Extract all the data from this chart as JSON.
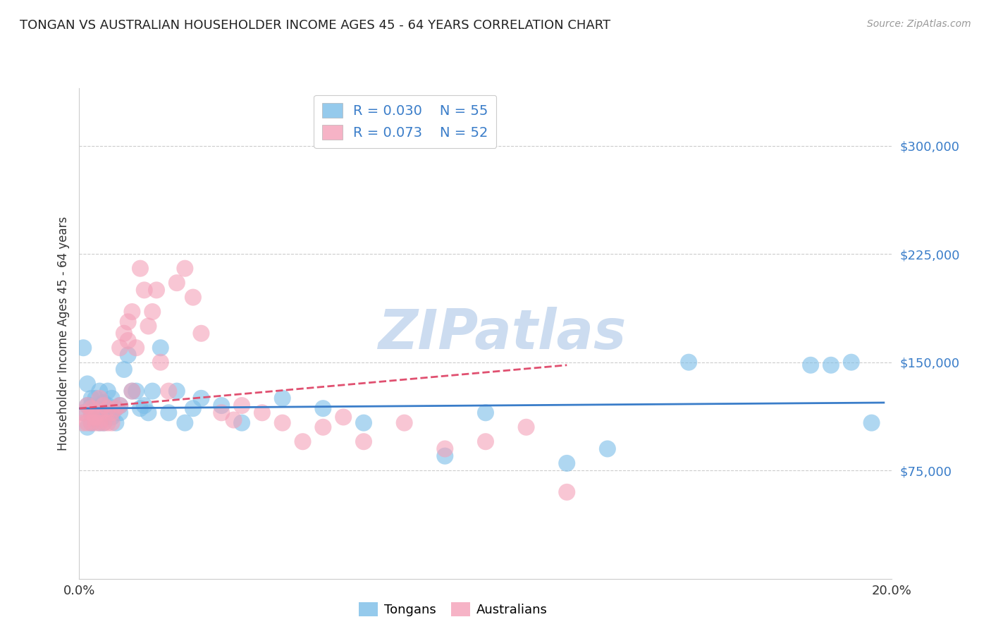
{
  "title": "TONGAN VS AUSTRALIAN HOUSEHOLDER INCOME AGES 45 - 64 YEARS CORRELATION CHART",
  "source": "Source: ZipAtlas.com",
  "ylabel": "Householder Income Ages 45 - 64 years",
  "xlim": [
    0.0,
    0.2
  ],
  "ylim": [
    0,
    340000
  ],
  "xticks": [
    0.0,
    0.05,
    0.1,
    0.15,
    0.2
  ],
  "xticklabels": [
    "0.0%",
    "",
    "",
    "",
    "20.0%"
  ],
  "ytick_positions": [
    75000,
    150000,
    225000,
    300000
  ],
  "ytick_labels": [
    "$75,000",
    "$150,000",
    "$225,000",
    "$300,000"
  ],
  "grid_color": "#cccccc",
  "background_color": "#ffffff",
  "tongan_color": "#7bbde8",
  "australian_color": "#f4a0b8",
  "tongan_line_color": "#3a7dc9",
  "australian_line_color": "#e05070",
  "tongan_R": "0.030",
  "tongan_N": "55",
  "australian_R": "0.073",
  "australian_N": "52",
  "watermark": "ZIPatlas",
  "watermark_color": "#ccdcf0",
  "tongan_scatter_x": [
    0.001,
    0.001,
    0.002,
    0.002,
    0.002,
    0.003,
    0.003,
    0.003,
    0.003,
    0.004,
    0.004,
    0.004,
    0.005,
    0.005,
    0.005,
    0.006,
    0.006,
    0.006,
    0.007,
    0.007,
    0.007,
    0.008,
    0.008,
    0.009,
    0.009,
    0.01,
    0.01,
    0.011,
    0.012,
    0.013,
    0.014,
    0.015,
    0.016,
    0.017,
    0.018,
    0.02,
    0.022,
    0.024,
    0.026,
    0.028,
    0.03,
    0.035,
    0.04,
    0.05,
    0.06,
    0.07,
    0.09,
    0.1,
    0.12,
    0.13,
    0.15,
    0.18,
    0.185,
    0.19,
    0.195
  ],
  "tongan_scatter_y": [
    115000,
    160000,
    120000,
    135000,
    105000,
    125000,
    115000,
    108000,
    120000,
    125000,
    118000,
    112000,
    130000,
    118000,
    108000,
    122000,
    115000,
    108000,
    130000,
    120000,
    115000,
    112000,
    125000,
    118000,
    108000,
    120000,
    115000,
    145000,
    155000,
    130000,
    130000,
    118000,
    120000,
    115000,
    130000,
    160000,
    115000,
    130000,
    108000,
    118000,
    125000,
    120000,
    108000,
    125000,
    118000,
    108000,
    85000,
    115000,
    80000,
    90000,
    150000,
    148000,
    148000,
    150000,
    108000
  ],
  "australian_scatter_x": [
    0.001,
    0.001,
    0.002,
    0.002,
    0.003,
    0.003,
    0.003,
    0.004,
    0.004,
    0.005,
    0.005,
    0.005,
    0.006,
    0.006,
    0.007,
    0.007,
    0.008,
    0.008,
    0.009,
    0.01,
    0.01,
    0.011,
    0.012,
    0.012,
    0.013,
    0.013,
    0.014,
    0.015,
    0.016,
    0.017,
    0.018,
    0.019,
    0.02,
    0.022,
    0.024,
    0.026,
    0.028,
    0.03,
    0.035,
    0.038,
    0.04,
    0.045,
    0.05,
    0.055,
    0.06,
    0.065,
    0.07,
    0.08,
    0.09,
    0.1,
    0.11,
    0.12
  ],
  "australian_scatter_y": [
    115000,
    108000,
    120000,
    108000,
    118000,
    108000,
    115000,
    112000,
    108000,
    125000,
    115000,
    108000,
    120000,
    108000,
    118000,
    108000,
    115000,
    108000,
    118000,
    120000,
    160000,
    170000,
    165000,
    178000,
    130000,
    185000,
    160000,
    215000,
    200000,
    175000,
    185000,
    200000,
    150000,
    130000,
    205000,
    215000,
    195000,
    170000,
    115000,
    110000,
    120000,
    115000,
    108000,
    95000,
    105000,
    112000,
    95000,
    108000,
    90000,
    95000,
    105000,
    60000
  ],
  "tongan_trend_x": [
    0.0,
    0.198
  ],
  "tongan_trend_y": [
    118000,
    122000
  ],
  "australian_trend_x": [
    0.0,
    0.12
  ],
  "australian_trend_y": [
    118000,
    148000
  ]
}
